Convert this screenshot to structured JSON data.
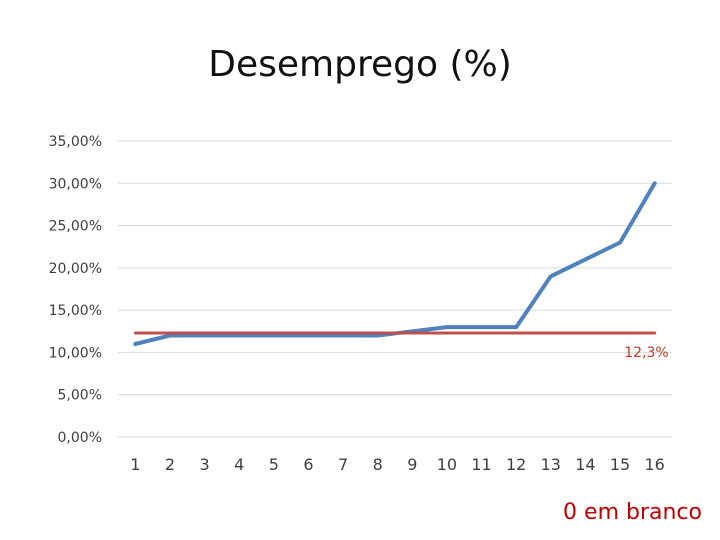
{
  "chart_data": {
    "type": "line",
    "title": "Desemprego (%)",
    "categories": [
      "1",
      "2",
      "3",
      "4",
      "5",
      "6",
      "7",
      "8",
      "9",
      "10",
      "11",
      "12",
      "13",
      "14",
      "15",
      "16"
    ],
    "series": [
      {
        "values": [
          11.0,
          12.0,
          12.0,
          12.0,
          12.0,
          12.0,
          12.0,
          12.0,
          12.5,
          13.0,
          13.0,
          13.0,
          19.0,
          21.0,
          23.0,
          30.0
        ],
        "color": "#4f81bd"
      },
      {
        "values": [
          12.3,
          12.3,
          12.3,
          12.3,
          12.3,
          12.3,
          12.3,
          12.3,
          12.3,
          12.3,
          12.3,
          12.3,
          12.3,
          12.3,
          12.3,
          12.3
        ],
        "color": "#c0504d"
      }
    ],
    "reference_label": "12,3%",
    "ylim": [
      0,
      35
    ],
    "yticks": [
      "0,00%",
      "5,00%",
      "10,00%",
      "15,00%",
      "20,00%",
      "25,00%",
      "30,00%",
      "35,00%"
    ],
    "ytick_values": [
      0,
      5,
      10,
      15,
      20,
      25,
      30,
      35
    ],
    "grid": true
  },
  "annotation": {
    "text": "0 em branco",
    "color": "#c00000"
  }
}
